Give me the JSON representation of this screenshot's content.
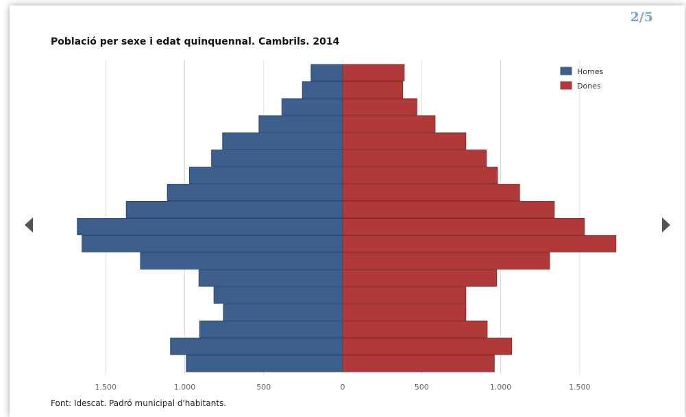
{
  "pager": "2/5",
  "footer": {
    "source": "Font: Idescat. Padró municipal d'habitants."
  },
  "colors": {
    "homes": "#3d5f8c",
    "dones": "#b03a3a",
    "grid": "#dddddd",
    "nav": "#555555",
    "pager": "#7aa3cc"
  },
  "chart_data": {
    "type": "bar",
    "orientation": "horizontal",
    "variant": "population-pyramid",
    "title": "Població per sexe i edat quinquennal. Cambrils. 2014",
    "xlim": [
      -1750,
      1750
    ],
    "x_ticks": [
      -1500,
      -1000,
      -500,
      0,
      500,
      1000,
      1500
    ],
    "x_tick_labels": [
      "1.500",
      "1.000",
      "500",
      "0",
      "500",
      "1.000",
      "1.500"
    ],
    "legend_position": "top-right",
    "grid": true,
    "series": [
      {
        "name": "Homes",
        "side": "left",
        "values": [
          200,
          255,
          385,
          530,
          760,
          830,
          970,
          1110,
          1370,
          1680,
          1650,
          1280,
          910,
          815,
          755,
          905,
          1090,
          990
        ]
      },
      {
        "name": "Dones",
        "side": "right",
        "values": [
          390,
          380,
          470,
          585,
          780,
          910,
          980,
          1120,
          1340,
          1530,
          1730,
          1310,
          975,
          780,
          780,
          915,
          1070,
          960
        ]
      }
    ]
  }
}
